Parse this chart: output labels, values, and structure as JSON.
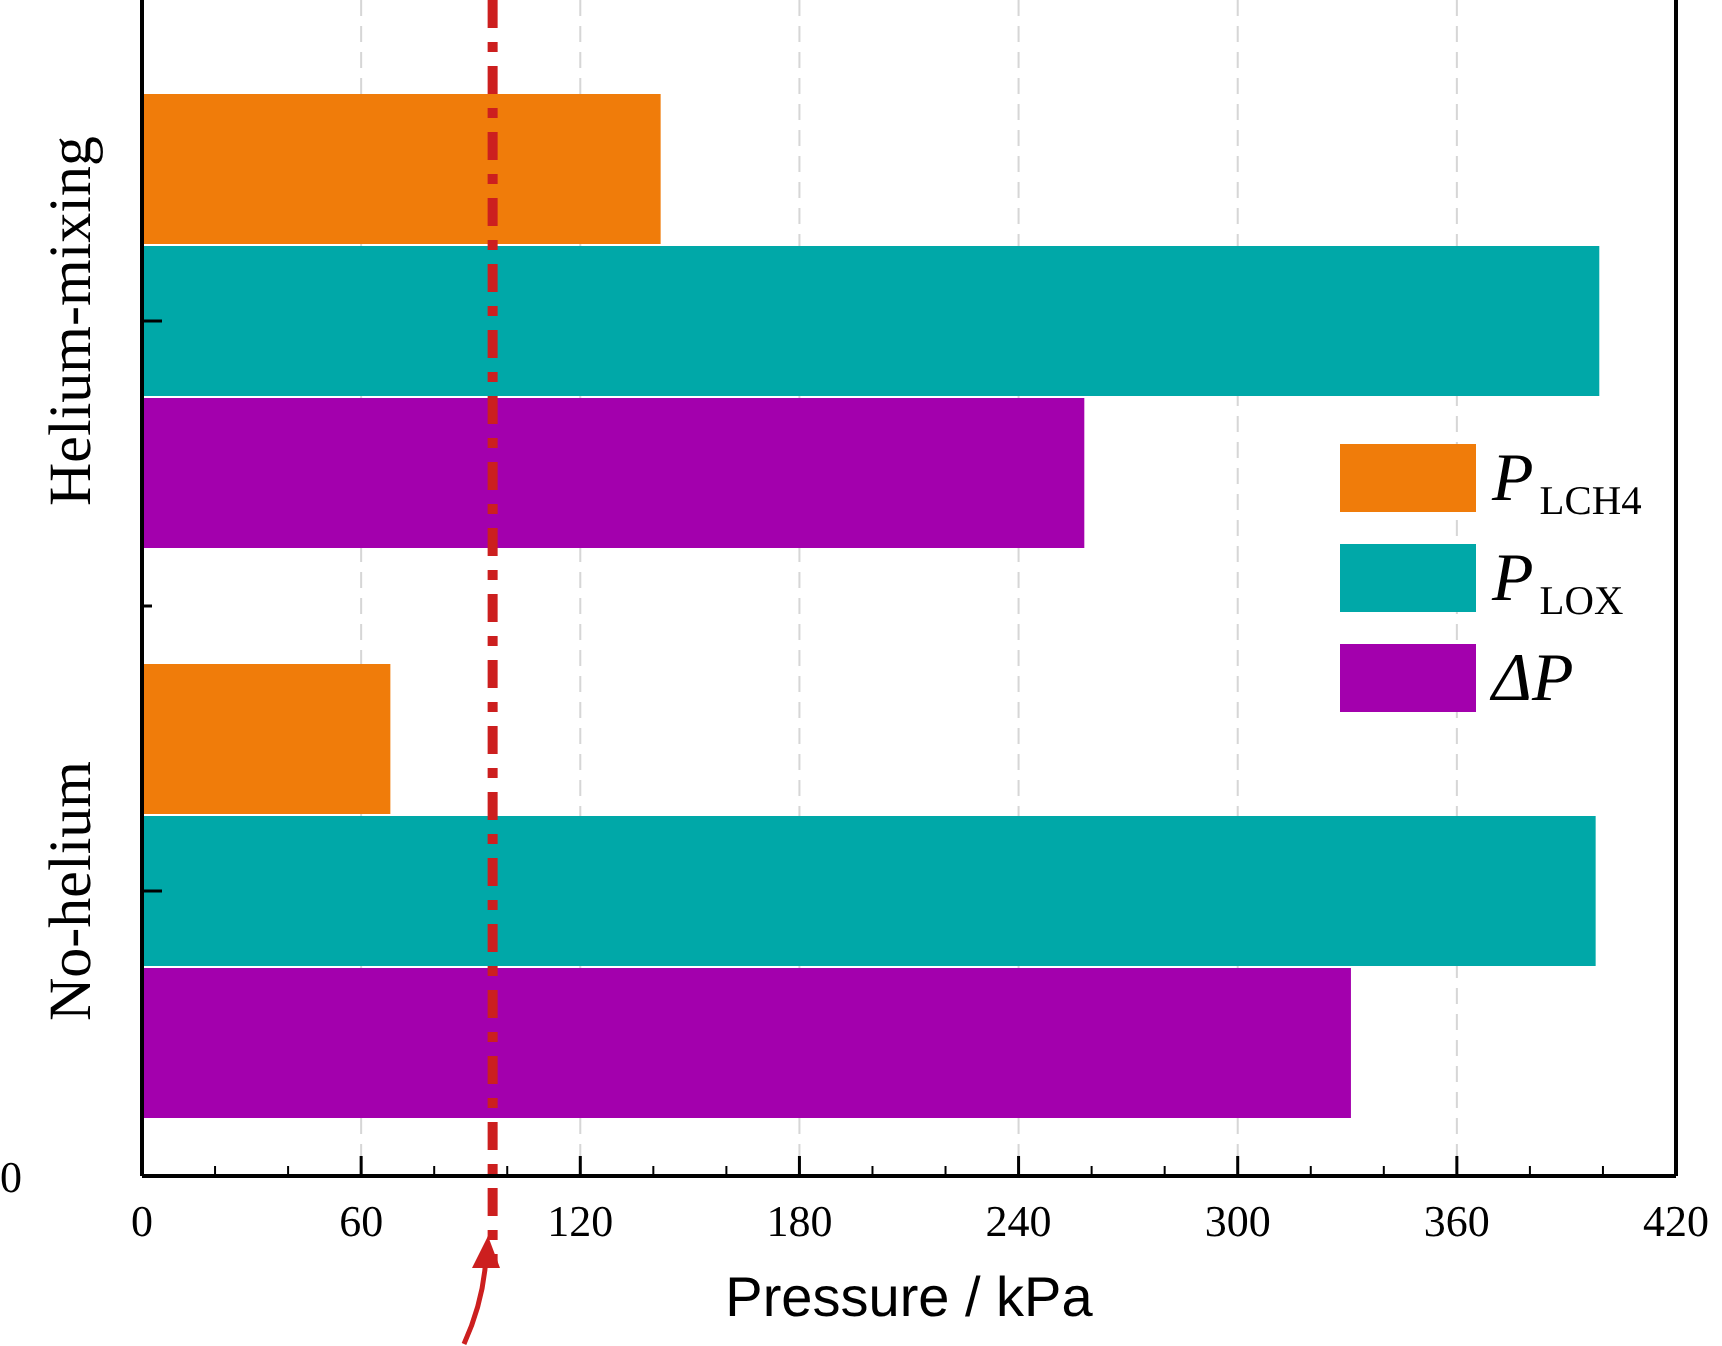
{
  "chart_data": {
    "type": "bar",
    "orientation": "horizontal",
    "xlabel": "Pressure / kPa",
    "categories": [
      "Helium-mixing",
      "No-helium"
    ],
    "series": [
      {
        "name": "P$_{LCH4}$",
        "color": "#f07c0a",
        "values": [
          142,
          68
        ]
      },
      {
        "name": "P$_{LOX}$",
        "color": "#00a8a8",
        "values": [
          399,
          398
        ]
      },
      {
        "name": "ΔP",
        "color": "#a300ad",
        "values": [
          258,
          331
        ]
      }
    ],
    "xlim": [
      0,
      420
    ],
    "xticks": [
      0,
      60,
      120,
      180,
      240,
      300,
      360,
      420
    ],
    "grid": "x",
    "legend": "right",
    "ref_lines": [
      {
        "axis": "x",
        "value": 96,
        "color": "#cc1f1f",
        "line_style": "dashdot"
      }
    ],
    "annotations": [
      "0"
    ]
  }
}
